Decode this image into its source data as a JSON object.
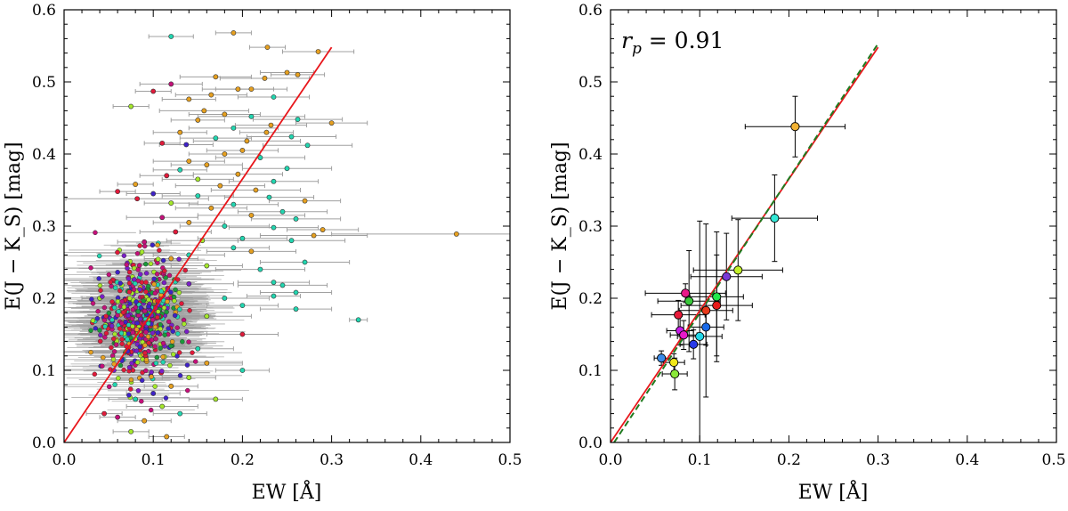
{
  "chart_data": [
    {
      "type": "scatter",
      "panel": "left",
      "xlabel": "EW [Å]",
      "ylabel": "E(J − K_S) [mag]",
      "xlim": [
        0.0,
        0.5
      ],
      "ylim": [
        0.0,
        0.6
      ],
      "xticks": [
        "0.0",
        "0.1",
        "0.2",
        "0.3",
        "0.4",
        "0.5"
      ],
      "yticks": [
        "0.0",
        "0.1",
        "0.2",
        "0.3",
        "0.4",
        "0.5",
        "0.6"
      ],
      "fit_line": {
        "x": [
          0.0,
          0.3
        ],
        "y": [
          0.0,
          0.548
        ],
        "color": "#e8161b"
      },
      "error_color": "#a0a0a0",
      "point_colors": [
        "#e6a020",
        "#22d6b0",
        "#a4e82a",
        "#c4107a",
        "#3f22c8",
        "#1a9a3a",
        "#e01a3a",
        "#7a1ec8"
      ],
      "points": [
        [
          0.12,
          0.563,
          0.025,
          1
        ],
        [
          0.19,
          0.568,
          0.02,
          0
        ],
        [
          0.228,
          0.548,
          0.02,
          0
        ],
        [
          0.285,
          0.542,
          0.04,
          0
        ],
        [
          0.25,
          0.513,
          0.03,
          0
        ],
        [
          0.262,
          0.51,
          0.03,
          0
        ],
        [
          0.225,
          0.505,
          0.05,
          0
        ],
        [
          0.17,
          0.507,
          0.04,
          0
        ],
        [
          0.12,
          0.497,
          0.035,
          3
        ],
        [
          0.1,
          0.487,
          0.02,
          6
        ],
        [
          0.21,
          0.49,
          0.04,
          0
        ],
        [
          0.195,
          0.49,
          0.04,
          0
        ],
        [
          0.165,
          0.482,
          0.04,
          0
        ],
        [
          0.235,
          0.479,
          0.04,
          1
        ],
        [
          0.14,
          0.476,
          0.03,
          0
        ],
        [
          0.075,
          0.466,
          0.02,
          2
        ],
        [
          0.157,
          0.46,
          0.05,
          0
        ],
        [
          0.18,
          0.455,
          0.04,
          0
        ],
        [
          0.21,
          0.452,
          0.06,
          1
        ],
        [
          0.15,
          0.447,
          0.03,
          0
        ],
        [
          0.262,
          0.448,
          0.05,
          1
        ],
        [
          0.3,
          0.443,
          0.04,
          0
        ],
        [
          0.232,
          0.44,
          0.04,
          0
        ],
        [
          0.19,
          0.436,
          0.05,
          1
        ],
        [
          0.227,
          0.43,
          0.03,
          0
        ],
        [
          0.255,
          0.424,
          0.05,
          1
        ],
        [
          0.13,
          0.43,
          0.03,
          0
        ],
        [
          0.17,
          0.422,
          0.04,
          1
        ],
        [
          0.11,
          0.415,
          0.02,
          6
        ],
        [
          0.137,
          0.413,
          0.03,
          4
        ],
        [
          0.205,
          0.418,
          0.06,
          0
        ],
        [
          0.273,
          0.412,
          0.05,
          1
        ],
        [
          0.2,
          0.405,
          0.04,
          0
        ],
        [
          0.18,
          0.4,
          0.04,
          0
        ],
        [
          0.22,
          0.395,
          0.05,
          1
        ],
        [
          0.14,
          0.39,
          0.04,
          0
        ],
        [
          0.16,
          0.385,
          0.04,
          0
        ],
        [
          0.25,
          0.38,
          0.05,
          1
        ],
        [
          0.13,
          0.378,
          0.03,
          1
        ],
        [
          0.195,
          0.372,
          0.05,
          0
        ],
        [
          0.115,
          0.37,
          0.03,
          6
        ],
        [
          0.15,
          0.365,
          0.04,
          2
        ],
        [
          0.235,
          0.362,
          0.05,
          1
        ],
        [
          0.08,
          0.358,
          0.02,
          0
        ],
        [
          0.175,
          0.356,
          0.05,
          0
        ],
        [
          0.215,
          0.35,
          0.05,
          0
        ],
        [
          0.06,
          0.348,
          0.02,
          6
        ],
        [
          0.1,
          0.345,
          0.03,
          4
        ],
        [
          0.15,
          0.342,
          0.04,
          1
        ],
        [
          0.23,
          0.34,
          0.05,
          1
        ],
        [
          0.082,
          0.338,
          0.08,
          6
        ],
        [
          0.27,
          0.335,
          0.04,
          0
        ],
        [
          0.12,
          0.332,
          0.03,
          2
        ],
        [
          0.19,
          0.33,
          0.05,
          1
        ],
        [
          0.165,
          0.325,
          0.04,
          0
        ],
        [
          0.245,
          0.32,
          0.05,
          1
        ],
        [
          0.21,
          0.315,
          0.06,
          0
        ],
        [
          0.11,
          0.312,
          0.04,
          3
        ],
        [
          0.26,
          0.31,
          0.05,
          1
        ],
        [
          0.14,
          0.305,
          0.04,
          0
        ],
        [
          0.18,
          0.3,
          0.05,
          1
        ],
        [
          0.235,
          0.298,
          0.05,
          1
        ],
        [
          0.29,
          0.295,
          0.04,
          0
        ],
        [
          0.125,
          0.292,
          0.04,
          6
        ],
        [
          0.28,
          0.287,
          0.06,
          0
        ],
        [
          0.44,
          0.289,
          0.14,
          0
        ],
        [
          0.2,
          0.283,
          0.05,
          1
        ],
        [
          0.155,
          0.28,
          0.04,
          2
        ],
        [
          0.255,
          0.28,
          0.06,
          1
        ],
        [
          0.09,
          0.278,
          0.03,
          3
        ],
        [
          0.19,
          0.27,
          0.04,
          1
        ],
        [
          0.21,
          0.265,
          0.05,
          0
        ],
        [
          0.14,
          0.26,
          0.04,
          1
        ],
        [
          0.27,
          0.25,
          0.05,
          1
        ],
        [
          0.12,
          0.255,
          0.03,
          0
        ],
        [
          0.16,
          0.245,
          0.04,
          2
        ],
        [
          0.22,
          0.24,
          0.05,
          1
        ],
        [
          0.33,
          0.17,
          0.01,
          1
        ],
        [
          0.235,
          0.222,
          0.04,
          1
        ],
        [
          0.245,
          0.218,
          0.05,
          1
        ],
        [
          0.26,
          0.208,
          0.04,
          1
        ],
        [
          0.235,
          0.203,
          0.03,
          1
        ],
        [
          0.26,
          0.185,
          0.04,
          1
        ],
        [
          0.2,
          0.19,
          0.04,
          1
        ],
        [
          0.18,
          0.2,
          0.05,
          1
        ],
        [
          0.16,
          0.175,
          0.05,
          2
        ],
        [
          0.15,
          0.13,
          0.04,
          1
        ],
        [
          0.16,
          0.11,
          0.04,
          0
        ],
        [
          0.14,
          0.09,
          0.03,
          2
        ],
        [
          0.12,
          0.078,
          0.03,
          0
        ],
        [
          0.1,
          0.068,
          0.03,
          4
        ],
        [
          0.08,
          0.06,
          0.03,
          1
        ],
        [
          0.11,
          0.05,
          0.04,
          2
        ],
        [
          0.13,
          0.04,
          0.03,
          1
        ],
        [
          0.06,
          0.035,
          0.02,
          3
        ],
        [
          0.09,
          0.03,
          0.03,
          0
        ],
        [
          0.075,
          0.015,
          0.02,
          2
        ],
        [
          0.115,
          0.008,
          0.02,
          0
        ],
        [
          0.045,
          0.04,
          0.02,
          6
        ],
        [
          0.17,
          0.06,
          0.03,
          2
        ],
        [
          0.2,
          0.1,
          0.03,
          1
        ],
        [
          0.2,
          0.15,
          0.04,
          6
        ],
        [
          0.14,
          0.22,
          0.05,
          7
        ],
        [
          0.04,
          0.2,
          0.02,
          2
        ]
      ]
    },
    {
      "type": "scatter",
      "panel": "right",
      "xlabel": "EW [Å]",
      "ylabel": "E(J − K_S) [mag]",
      "xlim": [
        0.0,
        0.5
      ],
      "ylim": [
        0.0,
        0.6
      ],
      "xticks": [
        "0.0",
        "0.1",
        "0.2",
        "0.3",
        "0.4",
        "0.5"
      ],
      "yticks": [
        "0.0",
        "0.1",
        "0.2",
        "0.3",
        "0.4",
        "0.5",
        "0.6"
      ],
      "annotation": {
        "symbol": "r",
        "subscript": "p",
        "value": " = 0.91"
      },
      "fit_line": {
        "x": [
          0.0,
          0.3
        ],
        "y": [
          0.0,
          0.548
        ],
        "color": "#e8161b"
      },
      "fit_line_dashed": {
        "x": [
          0.004,
          0.3
        ],
        "y": [
          0.0,
          0.553
        ],
        "color": "#1f7a1f"
      },
      "points": [
        {
          "x": 0.207,
          "y": 0.438,
          "xerr": 0.056,
          "yerr": 0.042,
          "color": "#f2b233"
        },
        {
          "x": 0.184,
          "y": 0.311,
          "xerr": 0.048,
          "yerr": 0.06,
          "color": "#33e8d6"
        },
        {
          "x": 0.143,
          "y": 0.239,
          "xerr": 0.05,
          "yerr": 0.07,
          "color": "#c4f02a"
        },
        {
          "x": 0.13,
          "y": 0.23,
          "xerr": 0.04,
          "yerr": 0.06,
          "color": "#7a3ad6"
        },
        {
          "x": 0.119,
          "y": 0.202,
          "xerr": 0.03,
          "yerr": 0.09,
          "color": "#22e84a"
        },
        {
          "x": 0.084,
          "y": 0.207,
          "xerr": 0.045,
          "yerr": 0.013,
          "color": "#e81a8a"
        },
        {
          "x": 0.088,
          "y": 0.196,
          "xerr": 0.035,
          "yerr": 0.07,
          "color": "#3ac83a"
        },
        {
          "x": 0.119,
          "y": 0.19,
          "xerr": 0.04,
          "yerr": 0.07,
          "color": "#e81a1a"
        },
        {
          "x": 0.107,
          "y": 0.183,
          "xerr": 0.03,
          "yerr": 0.12,
          "color": "#e83a1a"
        },
        {
          "x": 0.076,
          "y": 0.177,
          "xerr": 0.03,
          "yerr": 0.02,
          "color": "#e81a3a"
        },
        {
          "x": 0.107,
          "y": 0.16,
          "xerr": 0.02,
          "yerr": 0.025,
          "color": "#1a6ae8"
        },
        {
          "x": 0.078,
          "y": 0.155,
          "xerr": 0.015,
          "yerr": 0.02,
          "color": "#c81ae8"
        },
        {
          "x": 0.082,
          "y": 0.149,
          "xerr": 0.015,
          "yerr": 0.02,
          "color": "#e81ac8"
        },
        {
          "x": 0.1,
          "y": 0.147,
          "xerr": 0.025,
          "yerr": 0.16,
          "color": "#22d6e8"
        },
        {
          "x": 0.093,
          "y": 0.136,
          "xerr": 0.015,
          "yerr": 0.02,
          "color": "#2a3ae8"
        },
        {
          "x": 0.057,
          "y": 0.117,
          "xerr": 0.008,
          "yerr": 0.01,
          "color": "#3a8ae8"
        },
        {
          "x": 0.071,
          "y": 0.111,
          "xerr": 0.012,
          "yerr": 0.012,
          "color": "#f2e81a"
        },
        {
          "x": 0.072,
          "y": 0.095,
          "xerr": 0.014,
          "yerr": 0.022,
          "color": "#8ae83a"
        }
      ]
    }
  ]
}
